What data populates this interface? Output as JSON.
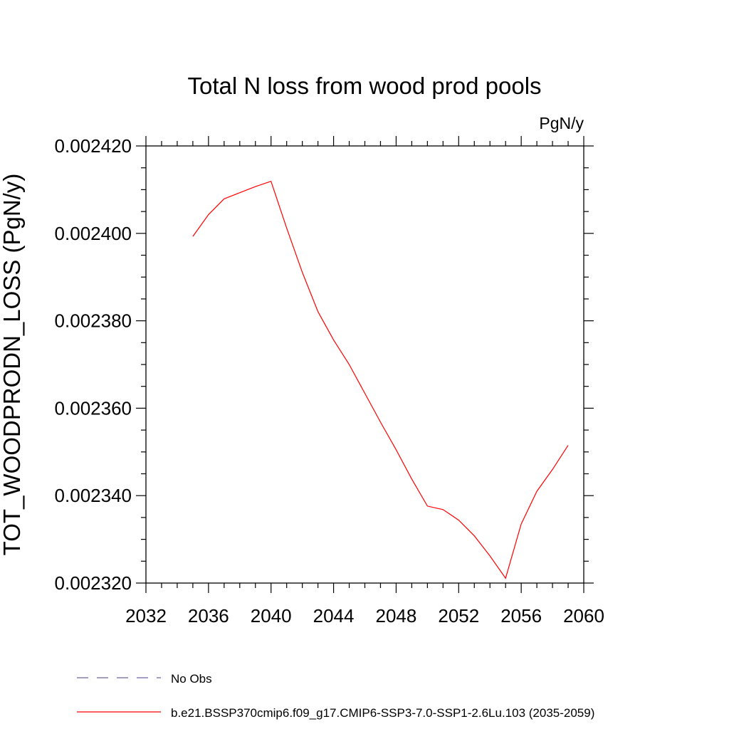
{
  "chart_data": {
    "type": "line",
    "title": "Total N loss from wood prod pools",
    "units_label": "PgN/y",
    "ylabel": "TOT_WOODPRODN_LOSS  (PgN/y)",
    "xlabel": "",
    "xlim": [
      2032,
      2060
    ],
    "ylim": [
      0.00232,
      0.00242
    ],
    "x_ticks": [
      "2032",
      "2036",
      "2040",
      "2044",
      "2048",
      "2052",
      "2056",
      "2060"
    ],
    "y_ticks": [
      "0.002320",
      "0.002340",
      "0.002360",
      "0.002380",
      "0.002400",
      "0.002420"
    ],
    "x_tick_values": [
      2032,
      2036,
      2040,
      2044,
      2048,
      2052,
      2056,
      2060
    ],
    "y_tick_values": [
      0.00232,
      0.00234,
      0.00236,
      0.00238,
      0.0024,
      0.00242
    ],
    "grid": false,
    "legend_position": "bottom",
    "series": [
      {
        "name": "b.e21.BSSP370cmip6.f09_g17.CMIP6-SSP3-7.0-SSP1-2.6Lu.103 (2035-2059)",
        "color": "#ff0000",
        "style": "solid",
        "x": [
          2035,
          2036,
          2037,
          2038,
          2039,
          2040,
          2041,
          2042,
          2043,
          2044,
          2045,
          2046,
          2047,
          2048,
          2049,
          2050,
          2051,
          2052,
          2053,
          2054,
          2055,
          2056,
          2057,
          2058,
          2059
        ],
        "y": [
          0.0023993,
          0.0024043,
          0.0024079,
          0.0024093,
          0.0024107,
          0.0024119,
          0.0024012,
          0.0023911,
          0.0023821,
          0.0023756,
          0.00237,
          0.0023634,
          0.0023568,
          0.0023505,
          0.0023438,
          0.0023376,
          0.0023368,
          0.0023344,
          0.0023308,
          0.0023262,
          0.0023211,
          0.0023335,
          0.002341,
          0.002346,
          0.0023515
        ]
      }
    ],
    "legend": [
      {
        "label": "No Obs",
        "color": "#7060a0",
        "style": "dashed"
      },
      {
        "label": "b.e21.BSSP370cmip6.f09_g17.CMIP6-SSP3-7.0-SSP1-2.6Lu.103 (2035-2059)",
        "color": "#ff0000",
        "style": "solid"
      }
    ]
  }
}
